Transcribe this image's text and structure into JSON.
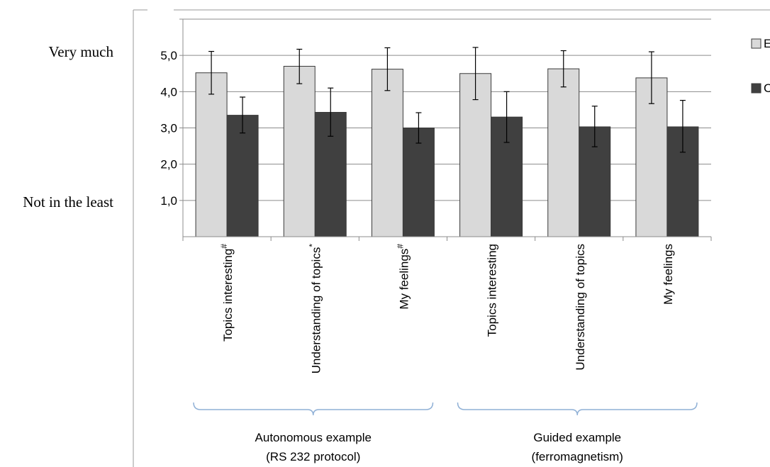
{
  "chart_data": {
    "type": "bar",
    "categories": [
      "Topics interesting",
      "Understanding of topics",
      "My feelings",
      "Topics interesting",
      "Understanding of topics",
      "My feelings"
    ],
    "category_marks": [
      "#",
      "*",
      "#",
      "",
      "",
      ""
    ],
    "groups": [
      {
        "label_line1": "Autonomous example",
        "label_line2": "(RS 232 protocol)",
        "categories": [
          0,
          1,
          2
        ]
      },
      {
        "label_line1": "Guided example",
        "label_line2": "(ferromagnetism)",
        "categories": [
          3,
          4,
          5
        ]
      }
    ],
    "series": [
      {
        "name": "E",
        "color": "#d9d9d9",
        "values": [
          4.52,
          4.7,
          4.62,
          4.5,
          4.63,
          4.38
        ],
        "err_low": [
          3.93,
          4.22,
          4.03,
          3.78,
          4.13,
          3.67
        ],
        "err_high": [
          5.11,
          5.17,
          5.21,
          5.22,
          5.13,
          5.1
        ]
      },
      {
        "name": "C",
        "color": "#404040",
        "values": [
          3.35,
          3.43,
          3.0,
          3.3,
          3.03,
          3.03
        ],
        "err_low": [
          2.86,
          2.77,
          2.58,
          2.6,
          2.48,
          2.33
        ],
        "err_high": [
          3.85,
          4.1,
          3.42,
          4.0,
          3.6,
          3.76
        ]
      }
    ],
    "ylim": [
      0,
      6
    ],
    "yticks": [
      1,
      2,
      3,
      4,
      5
    ],
    "ytick_labels": [
      "1,0",
      "2,0",
      "3,0",
      "4,0",
      "5,0"
    ],
    "grid": true,
    "legend_position": "right",
    "scale_labels": {
      "top": "Very much",
      "bottom": "Not in the least"
    },
    "title": "",
    "xlabel": "",
    "ylabel": ""
  }
}
